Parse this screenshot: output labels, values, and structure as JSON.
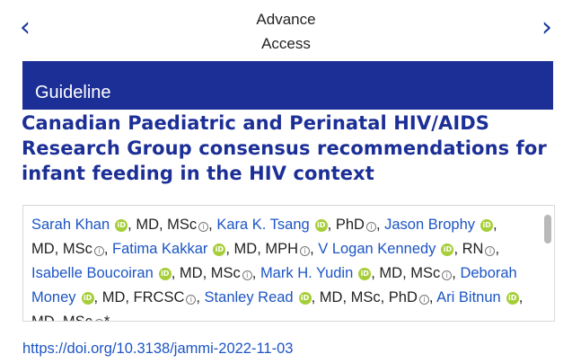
{
  "nav": {
    "prev_icon": "chevron-left-icon",
    "next_icon": "chevron-right-icon",
    "title_line1": "Advance",
    "title_line2": "Access"
  },
  "banner": {
    "label": "Guideline",
    "color": "#1c2f96"
  },
  "article": {
    "title": "Canadian Paediatric and Perinatal HIV/AIDS Research Group consensus recommendations for infant feeding in the HIV context",
    "doi": "https://doi.org/10.3138/jammi-2022-11-03"
  },
  "authors": [
    {
      "name": "Sarah Khan",
      "creds": ", MD, MSc",
      "sep": ", "
    },
    {
      "name": "Kara K. Tsang",
      "creds": ", PhD",
      "sep": ", "
    },
    {
      "name": "Jason Brophy",
      "creds": ", MD, MSc",
      "sep": ", "
    },
    {
      "name": "Fatima Kakkar",
      "creds": ", MD, MPH",
      "sep": ", "
    },
    {
      "name": "V Logan Kennedy",
      "creds": ", RN",
      "sep": ", "
    },
    {
      "name": "Isabelle Boucoiran",
      "creds": ", MD, MSc",
      "sep": ", "
    },
    {
      "name": "Mark H. Yudin",
      "creds": ", MD, MSc",
      "sep": ", "
    },
    {
      "name": "Deborah Money",
      "creds": ", MD, FRCSC",
      "sep": ", "
    },
    {
      "name": "Stanley Read",
      "creds": ", MD, MSc, PhD",
      "sep": ", "
    },
    {
      "name": "Ari Bitnun",
      "creds": ", MD, MSc",
      "sep": ""
    }
  ],
  "authors_trailing_mark": "*",
  "icons": {
    "orcid": "orcid-icon",
    "info": "info-icon"
  },
  "orcid_glyph": "iD",
  "info_glyph": "i",
  "colors": {
    "accent": "#1c2f96",
    "link": "#1c55c4",
    "orcid": "#a6ce39"
  }
}
